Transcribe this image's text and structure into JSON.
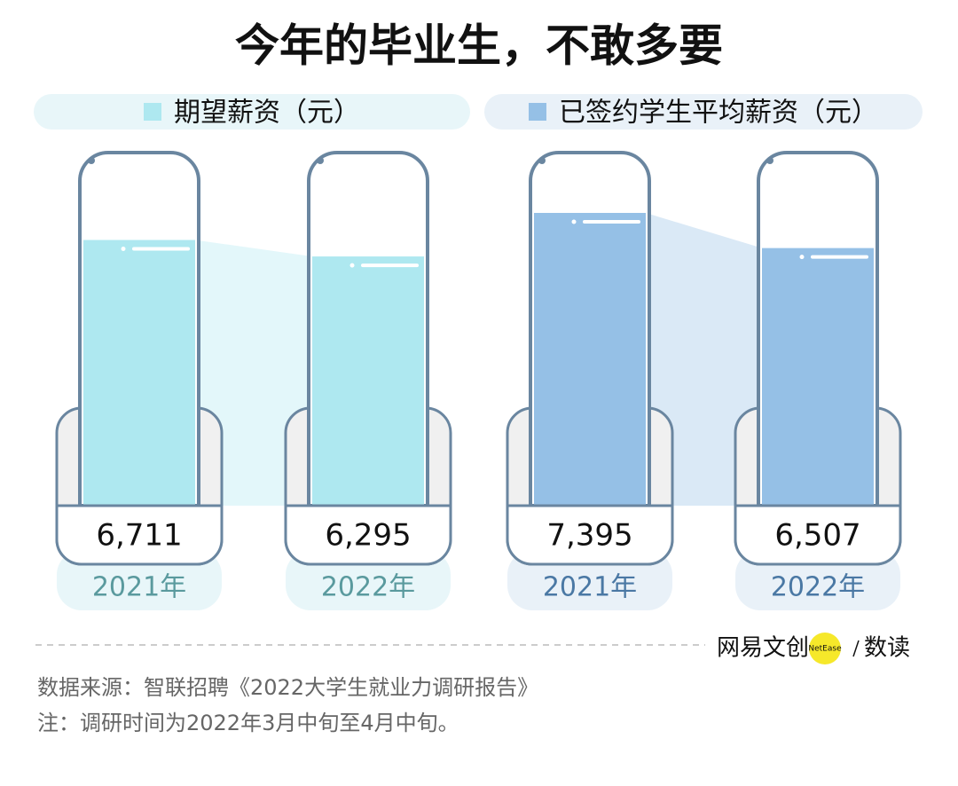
{
  "chart_data": {
    "type": "bar",
    "title": "今年的毕业生，不敢多要",
    "categories": [
      "2021年",
      "2022年"
    ],
    "series": [
      {
        "name": "期望薪资（元）",
        "color": "#aee8f0",
        "values": [
          6711,
          6295
        ],
        "value_labels": [
          "6,711",
          "6,295"
        ]
      },
      {
        "name": "已签约学生平均薪资（元）",
        "color": "#95c0e6",
        "values": [
          7395,
          6507
        ],
        "value_labels": [
          "7,395",
          "6,507"
        ]
      }
    ],
    "logo": {
      "brand": "网易文创",
      "badge": "NetEase",
      "column": "数读"
    },
    "notes": [
      "数据来源：智联招聘《2022大学生就业力调研报告》",
      "注：调研时间为2022年3月中旬至4月中旬。"
    ]
  }
}
